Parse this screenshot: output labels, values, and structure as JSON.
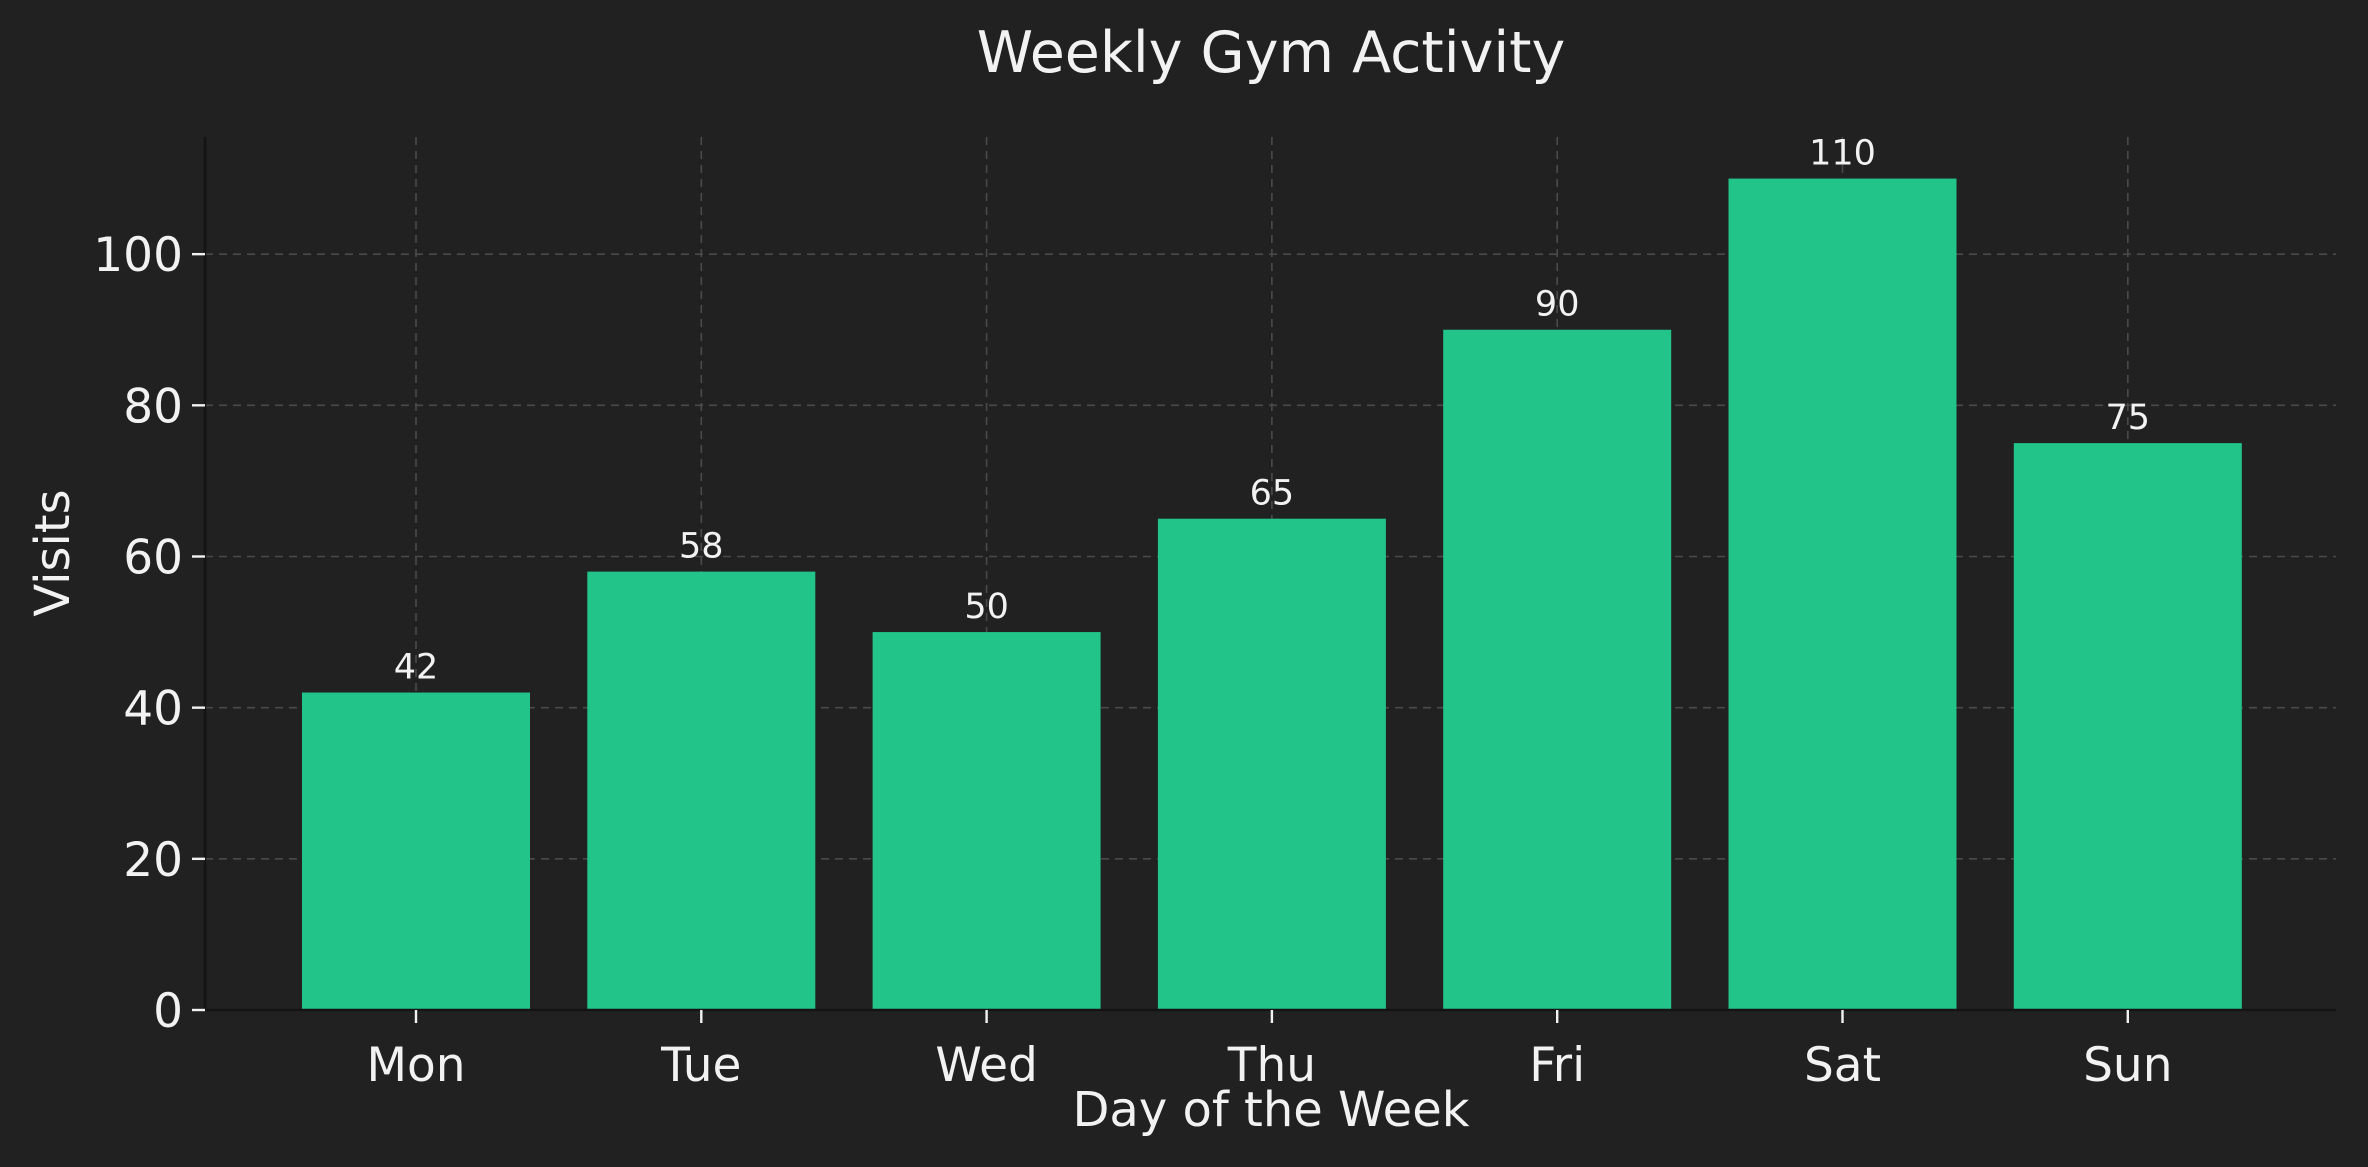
{
  "chart_data": {
    "type": "bar",
    "title": "Weekly Gym Activity",
    "xlabel": "Day of the Week",
    "ylabel": "Visits",
    "categories": [
      "Mon",
      "Tue",
      "Wed",
      "Thu",
      "Fri",
      "Sat",
      "Sun"
    ],
    "values": [
      42,
      58,
      50,
      65,
      90,
      110,
      75
    ],
    "ylim": [
      0,
      115.5
    ],
    "yticks": [
      0,
      20,
      40,
      60,
      80,
      100
    ],
    "grid": true,
    "grid_style": "dashed",
    "data_labels": true,
    "legend": false,
    "colors": {
      "background": "#212121",
      "bar": "#22c48a",
      "text": "#f2f2f2",
      "grid": "#4a4a4a",
      "axis": "#141414"
    }
  }
}
